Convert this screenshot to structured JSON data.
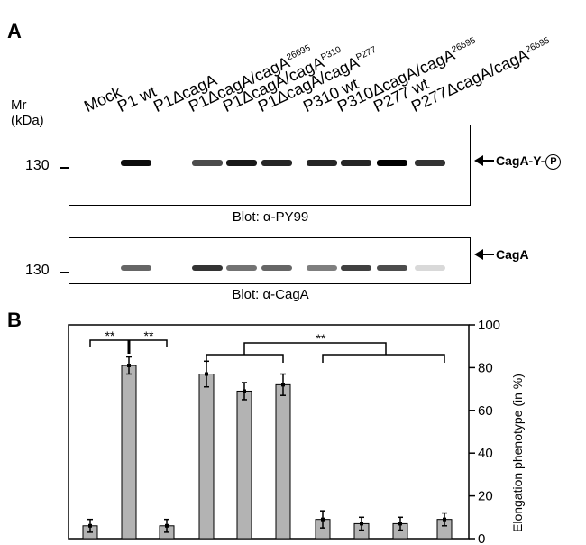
{
  "panel_a": {
    "letter": "A",
    "mr_label_line1": "Mr",
    "mr_label_line2": "(kDa)",
    "lanes": [
      {
        "main": "Mock",
        "sup": ""
      },
      {
        "main": "P1 wt",
        "sup": ""
      },
      {
        "main": "P1ΔcagA",
        "sup": ""
      },
      {
        "main": "P1ΔcagA/cagA",
        "sup": "26695"
      },
      {
        "main": "P1ΔcagA/cagA",
        "sup": "P310"
      },
      {
        "main": "P1ΔcagA/cagA",
        "sup": "P277"
      },
      {
        "main": "P310 wt",
        "sup": ""
      },
      {
        "main": "P310ΔcagA/cagA",
        "sup": "26695"
      },
      {
        "main": "P277 wt",
        "sup": ""
      },
      {
        "main": "P277ΔcagA/cagA",
        "sup": "26695"
      }
    ],
    "blot1": {
      "mw_label": "130",
      "caption": "Blot: α-PY99",
      "arrow_label": "CagA-Y-",
      "circle_label": "P",
      "band_intensity": [
        0,
        0.95,
        0,
        0.7,
        0.9,
        0.85,
        0.85,
        0.85,
        1.0,
        0.8
      ]
    },
    "blot2": {
      "mw_label": "130",
      "caption": "Blot: α-CagA",
      "arrow_label": "CagA",
      "band_intensity": [
        0,
        0.6,
        0,
        0.8,
        0.55,
        0.6,
        0.5,
        0.75,
        0.7,
        0.15
      ]
    }
  },
  "panel_b": {
    "letter": "B",
    "significance_marks": [
      "**",
      "**",
      "**"
    ]
  },
  "chart_data": {
    "type": "bar",
    "categories": [
      "Mock",
      "P1 wt",
      "P1ΔcagA",
      "P1ΔcagA/cagA26695",
      "P1ΔcagA/cagAP310",
      "P1ΔcagA/cagAP277",
      "P310 wt",
      "P310ΔcagA/cagA26695",
      "P277 wt",
      "P277ΔcagA/cagA26695"
    ],
    "values": [
      6,
      81,
      6,
      77,
      69,
      72,
      9,
      7,
      7,
      9
    ],
    "errors": [
      3,
      4,
      3,
      6,
      4,
      5,
      4,
      3,
      3,
      3
    ],
    "ylabel": "Elongation phenotype (in %)",
    "ylim": [
      0,
      100
    ],
    "yticks": [
      "0",
      "20",
      "40",
      "60",
      "80",
      "100"
    ],
    "bar_color": "#b3b3b3"
  }
}
